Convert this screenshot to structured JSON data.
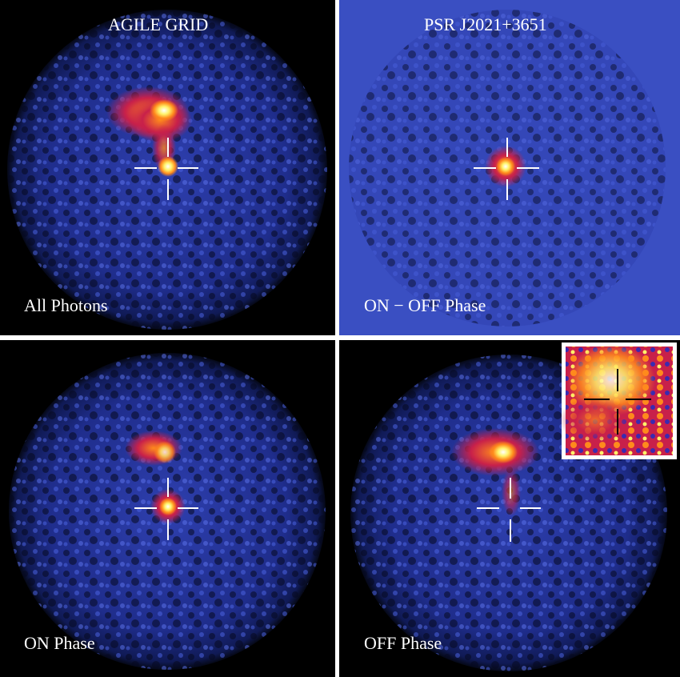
{
  "panels": [
    {
      "title": "AGILE GRID",
      "label": "All Photons"
    },
    {
      "title": "PSR J2021+3651",
      "label": "ON − OFF Phase"
    },
    {
      "title": "",
      "label": "ON Phase"
    },
    {
      "title": "",
      "label": "OFF Phase"
    }
  ],
  "colors": {
    "background": "#000000",
    "map_blue": "#2b3fb8",
    "map_dark": "#05081e",
    "hot_red": "#c8204a",
    "hot_orange": "#ff8a1c",
    "hot_yellow": "#fff36a",
    "crosshair": "#ffffff",
    "inset_border": "#ffffff",
    "inset_crosshair": "#000000"
  }
}
